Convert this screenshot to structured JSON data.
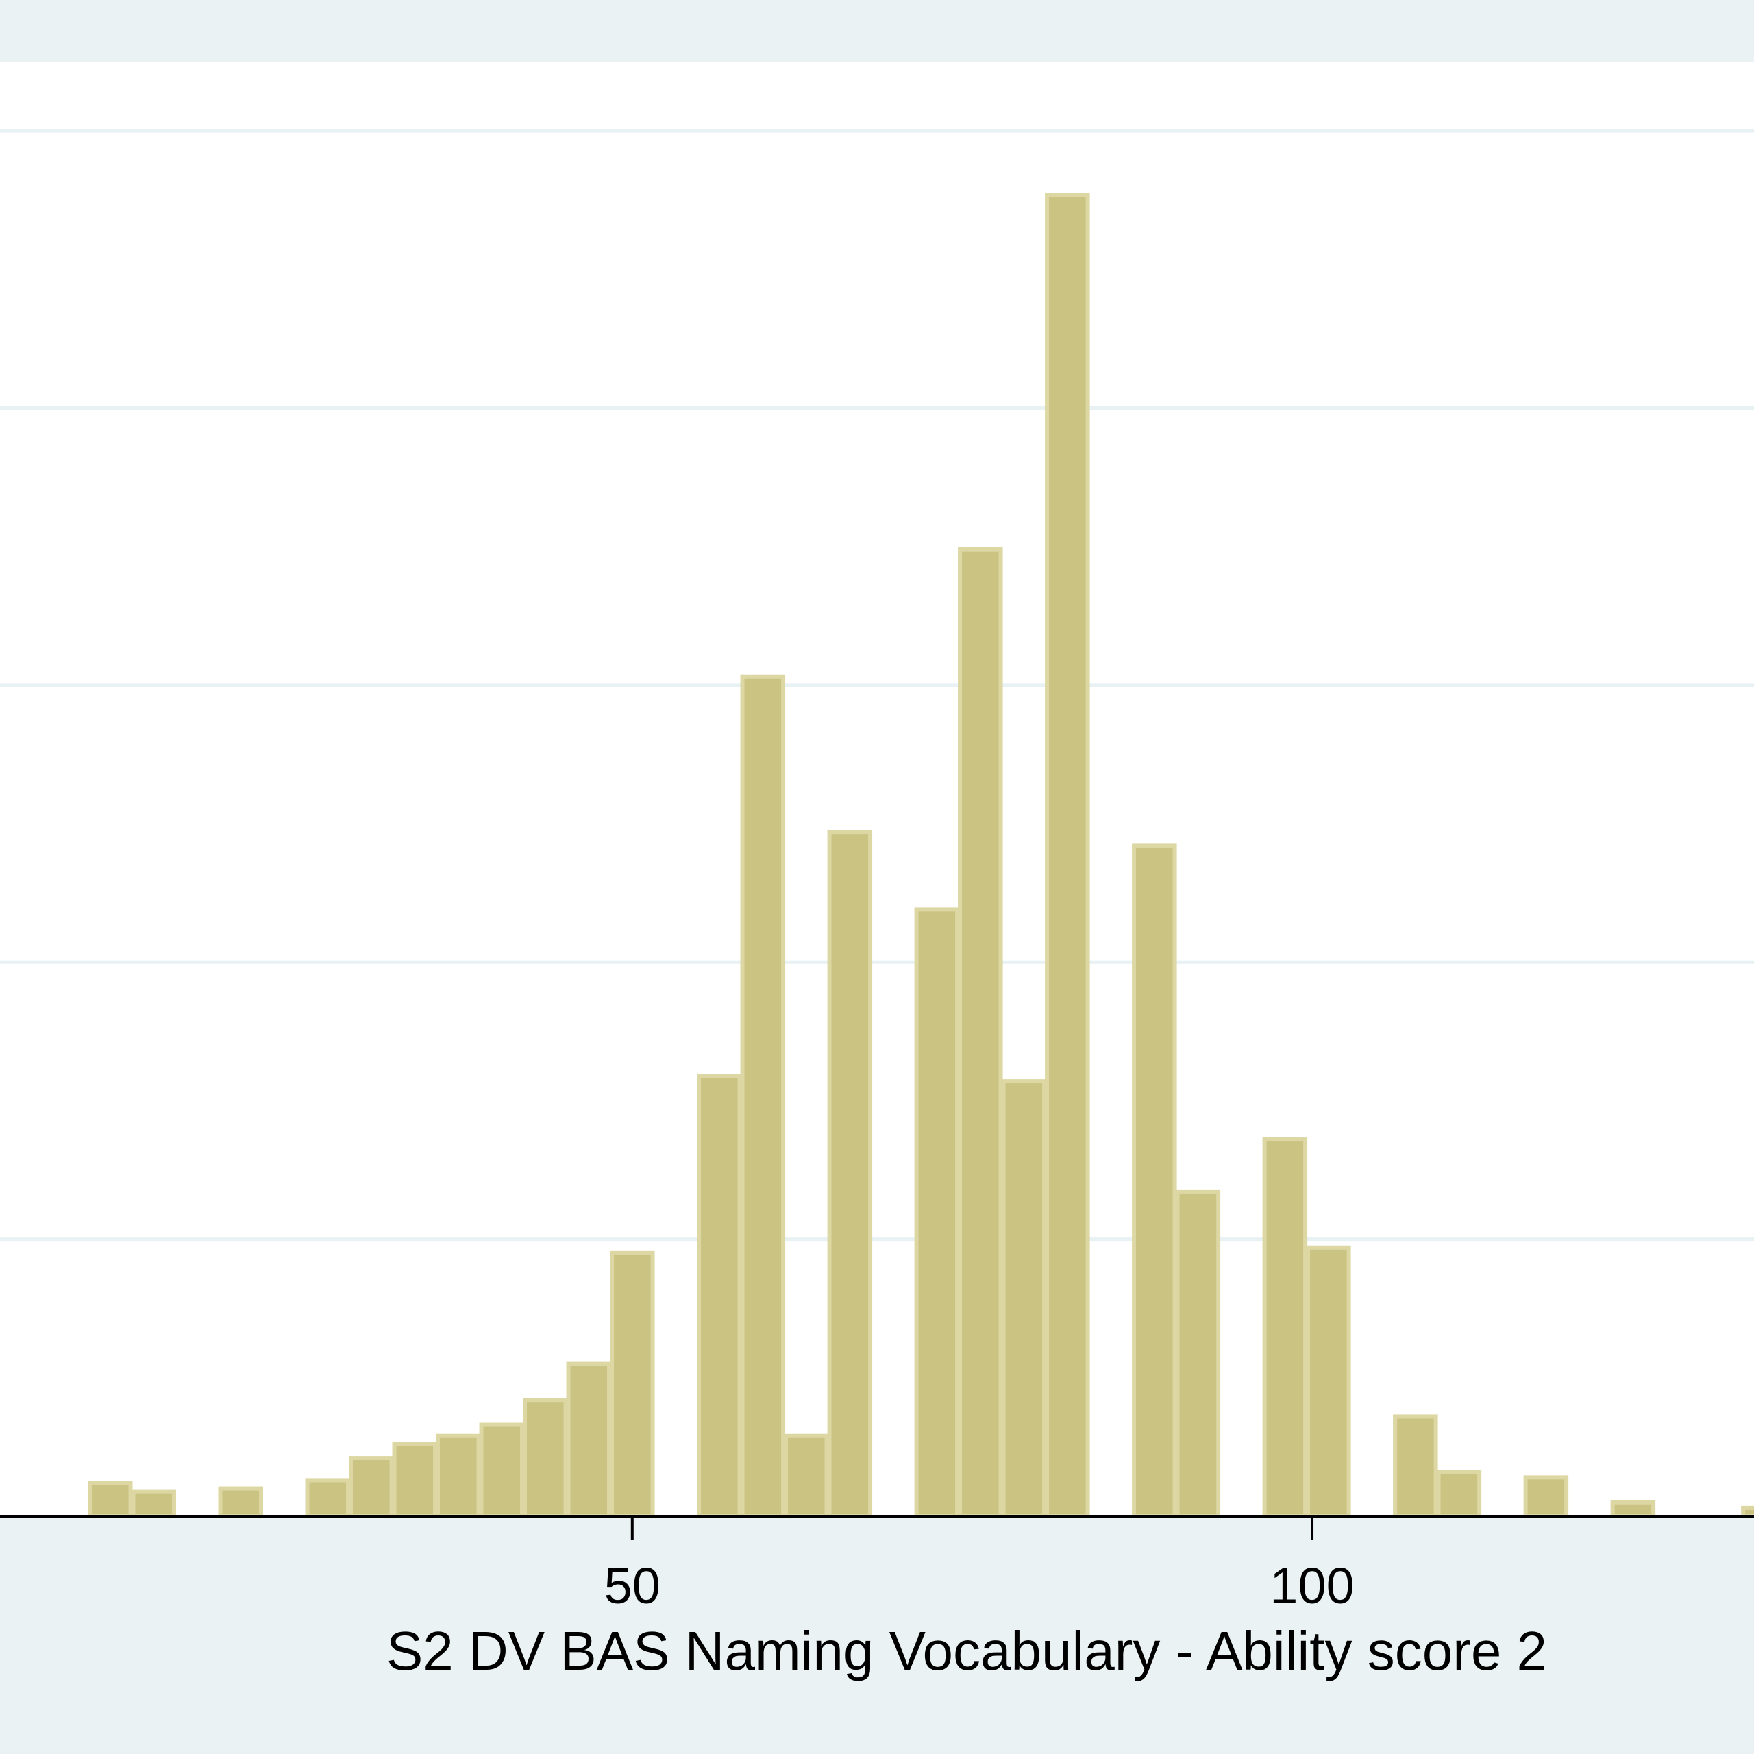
{
  "chart_data": {
    "type": "histogram",
    "title": "",
    "xlabel": "S2 DV BAS Naming Vocabulary - Ability score 2",
    "ylabel": "",
    "xlim": [
      3.5,
      132.5
    ],
    "ylim": [
      0,
      0.0525
    ],
    "x_ticks": [
      50,
      100
    ],
    "y_gridlines": [
      0.01,
      0.02,
      0.03,
      0.04,
      0.05
    ],
    "grid": true,
    "legend": "none",
    "bin_width": 3.2,
    "bins": [
      {
        "x0": 10.0,
        "x1": 13.2,
        "density": 0.0012
      },
      {
        "x0": 13.2,
        "x1": 16.4,
        "density": 0.0009
      },
      {
        "x0": 19.6,
        "x1": 22.8,
        "density": 0.001
      },
      {
        "x0": 26.0,
        "x1": 29.2,
        "density": 0.0013
      },
      {
        "x0": 29.2,
        "x1": 32.4,
        "density": 0.0021
      },
      {
        "x0": 32.4,
        "x1": 35.6,
        "density": 0.0026
      },
      {
        "x0": 35.6,
        "x1": 38.8,
        "density": 0.0029
      },
      {
        "x0": 38.8,
        "x1": 42.0,
        "density": 0.0033
      },
      {
        "x0": 42.0,
        "x1": 45.2,
        "density": 0.0042
      },
      {
        "x0": 45.2,
        "x1": 48.4,
        "density": 0.0055
      },
      {
        "x0": 48.4,
        "x1": 51.6,
        "density": 0.0095
      },
      {
        "x0": 54.8,
        "x1": 58.0,
        "density": 0.0159
      },
      {
        "x0": 58.0,
        "x1": 61.2,
        "density": 0.0303
      },
      {
        "x0": 61.2,
        "x1": 64.4,
        "density": 0.0029
      },
      {
        "x0": 64.4,
        "x1": 67.6,
        "density": 0.0247
      },
      {
        "x0": 70.8,
        "x1": 74.0,
        "density": 0.0219
      },
      {
        "x0": 74.0,
        "x1": 77.2,
        "density": 0.0349
      },
      {
        "x0": 77.2,
        "x1": 80.4,
        "density": 0.0157
      },
      {
        "x0": 80.4,
        "x1": 83.6,
        "density": 0.0477
      },
      {
        "x0": 86.8,
        "x1": 90.0,
        "density": 0.0242
      },
      {
        "x0": 90.0,
        "x1": 93.2,
        "density": 0.0117
      },
      {
        "x0": 96.4,
        "x1": 99.6,
        "density": 0.0136
      },
      {
        "x0": 99.6,
        "x1": 102.8,
        "density": 0.0097
      },
      {
        "x0": 106.0,
        "x1": 109.2,
        "density": 0.0036
      },
      {
        "x0": 109.2,
        "x1": 112.4,
        "density": 0.0016
      },
      {
        "x0": 115.6,
        "x1": 118.8,
        "density": 0.0014
      },
      {
        "x0": 122.0,
        "x1": 125.2,
        "density": 0.0005
      },
      {
        "x0": 131.6,
        "x1": 134.8,
        "density": 0.0003
      }
    ]
  },
  "colors": {
    "background": "#eaf2f3",
    "plot_background": "#ffffff",
    "gridline": "#e8f1f3",
    "bar_fill": "#cbc382",
    "bar_outline": "#dcd7a3",
    "axis": "#000000"
  }
}
